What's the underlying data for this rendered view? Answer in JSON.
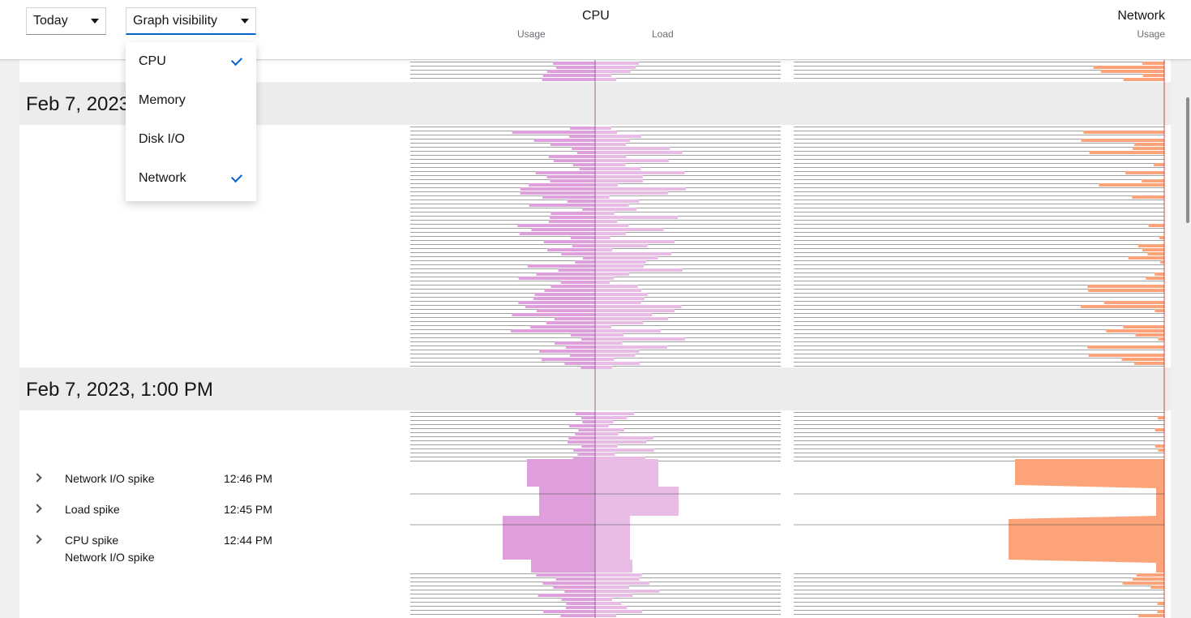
{
  "toolbar": {
    "range_select": "Today",
    "visibility_select": "Graph visibility"
  },
  "visibility_menu": [
    {
      "label": "CPU",
      "checked": true
    },
    {
      "label": "Memory",
      "checked": false
    },
    {
      "label": "Disk I/O",
      "checked": false
    },
    {
      "label": "Network",
      "checked": true
    }
  ],
  "columns": {
    "cpu": {
      "title": "CPU",
      "left_sub": "Usage",
      "right_sub": "Load"
    },
    "network": {
      "title": "Network",
      "sub": "Usage"
    }
  },
  "sections": [
    {
      "title": "Feb 7, 2023"
    },
    {
      "title": "Feb 7, 2023, 1:00 PM"
    }
  ],
  "events": [
    {
      "labels": [
        "Network I/O spike"
      ],
      "time": "12:46 PM"
    },
    {
      "labels": [
        "Load spike"
      ],
      "time": "12:45 PM"
    },
    {
      "labels": [
        "CPU spike",
        "Network I/O spike"
      ],
      "time": "12:44 PM"
    }
  ],
  "colors": {
    "cpu_usage": "#de9fdc",
    "cpu_load": "#e9bce6",
    "network_usage": "#fca37a",
    "menu_check": "#0066cc"
  },
  "icons": {
    "caret": "caret-down-icon",
    "check": "check-icon",
    "expand": "chevron-right-icon"
  }
}
